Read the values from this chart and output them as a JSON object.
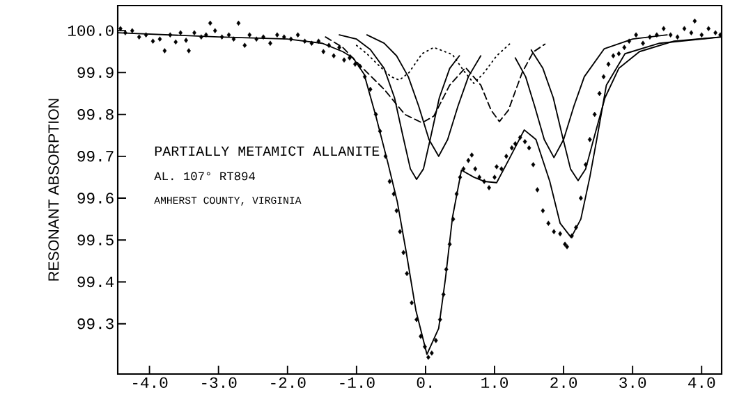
{
  "chart_data": {
    "type": "line",
    "ylabel": "RESONANT ABSORPTION",
    "annotations": [
      "PARTIALLY METAMICT ALLANITE",
      "AL. 107° RT894",
      "AMHERST COUNTY, VIRGINIA"
    ],
    "xlim": [
      -4.46,
      4.29
    ],
    "ylim": [
      99.18,
      100.06
    ],
    "xticks": [
      {
        "value": -4,
        "label": "-4.0"
      },
      {
        "value": -3,
        "label": "-3.0"
      },
      {
        "value": -2,
        "label": "-2.0"
      },
      {
        "value": -1,
        "label": "-1.0"
      },
      {
        "value": 0,
        "label": "0."
      },
      {
        "value": 1,
        "label": "1.0"
      },
      {
        "value": 2,
        "label": "2.0"
      },
      {
        "value": 3,
        "label": "3.0"
      },
      {
        "value": 4,
        "label": "4.0"
      }
    ],
    "yticks": [
      {
        "value": 99.3,
        "label": "99.3"
      },
      {
        "value": 99.4,
        "label": "99.4"
      },
      {
        "value": 99.5,
        "label": "99.5"
      },
      {
        "value": 99.6,
        "label": "99.6"
      },
      {
        "value": 99.7,
        "label": "99.7"
      },
      {
        "value": 99.8,
        "label": "99.8"
      },
      {
        "value": 99.9,
        "label": "99.9"
      },
      {
        "value": 100,
        "label": "100.0"
      }
    ],
    "series": [
      {
        "type": "scatter",
        "marker": "diamond",
        "color": "#000000",
        "x": [
          -4.42,
          -4.35,
          -4.25,
          -4.15,
          -4.05,
          -3.95,
          -3.85,
          -3.78,
          -3.7,
          -3.62,
          -3.55,
          -3.47,
          -3.43,
          -3.35,
          -3.25,
          -3.18,
          -3.12,
          -3.05,
          -2.95,
          -2.85,
          -2.78,
          -2.71,
          -2.62,
          -2.55,
          -2.45,
          -2.35,
          -2.25,
          -2.15,
          -2.05,
          -1.95,
          -1.85,
          -1.75,
          -1.65,
          -1.55,
          -1.48,
          -1.4,
          -1.33,
          -1.25,
          -1.18,
          -1.1,
          -1.02,
          -0.95,
          -0.88,
          -0.8,
          -0.72,
          -0.66,
          -0.58,
          -0.52,
          -0.46,
          -0.42,
          -0.37,
          -0.32,
          -0.27,
          -0.2,
          -0.13,
          -0.07,
          -0.01,
          0.04,
          0.09,
          0.15,
          0.21,
          0.26,
          0.3,
          0.35,
          0.4,
          0.45,
          0.5,
          0.55,
          0.62,
          0.67,
          0.72,
          0.78,
          0.85,
          0.92,
          1.0,
          1.03,
          1.1,
          1.17,
          1.25,
          1.3,
          1.37,
          1.44,
          1.5,
          1.56,
          1.62,
          1.7,
          1.78,
          1.86,
          1.95,
          2.02,
          2.05,
          2.12,
          2.18,
          2.25,
          2.32,
          2.38,
          2.45,
          2.52,
          2.58,
          2.65,
          2.72,
          2.8,
          2.88,
          2.95,
          3.05,
          3.15,
          3.25,
          3.35,
          3.45,
          3.55,
          3.65,
          3.75,
          3.85,
          3.9,
          4.0,
          4.1,
          4.2,
          4.27
        ],
        "values": [
          100.005,
          99.995,
          100.0,
          99.985,
          99.99,
          99.975,
          99.98,
          99.952,
          99.99,
          99.973,
          99.995,
          99.977,
          99.952,
          99.995,
          99.985,
          99.99,
          100.018,
          100.0,
          99.985,
          99.99,
          99.98,
          100.018,
          99.965,
          99.99,
          99.98,
          99.985,
          99.97,
          99.99,
          99.985,
          99.98,
          99.99,
          99.975,
          99.97,
          99.975,
          99.95,
          99.965,
          99.94,
          99.96,
          99.93,
          99.935,
          99.92,
          99.915,
          99.89,
          99.86,
          99.8,
          99.76,
          99.7,
          99.64,
          99.61,
          99.57,
          99.52,
          99.47,
          99.42,
          99.35,
          99.31,
          99.27,
          99.245,
          99.22,
          99.23,
          99.26,
          99.31,
          99.37,
          99.43,
          99.49,
          99.55,
          99.61,
          99.65,
          99.67,
          99.69,
          99.703,
          99.67,
          99.65,
          99.64,
          99.625,
          99.65,
          99.675,
          99.67,
          99.7,
          99.72,
          99.73,
          99.745,
          99.735,
          99.72,
          99.68,
          99.62,
          99.57,
          99.54,
          99.52,
          99.515,
          99.49,
          99.484,
          99.51,
          99.53,
          99.6,
          99.68,
          99.74,
          99.8,
          99.85,
          99.89,
          99.92,
          99.94,
          99.945,
          99.96,
          99.975,
          99.99,
          99.97,
          99.985,
          99.99,
          100.005,
          99.99,
          99.985,
          100.005,
          99.995,
          100.023,
          99.99,
          100.005,
          99.995,
          99.99
        ]
      },
      {
        "line_style": "solid",
        "color": "#000000",
        "x": [
          -4.46,
          -3.0,
          -2.0,
          -1.5,
          -1.2,
          -1.05,
          -0.89,
          -0.72,
          -0.55,
          -0.41,
          -0.28,
          -0.14,
          0.02,
          0.19,
          0.29,
          0.39,
          0.52,
          0.7,
          0.85,
          1.03,
          1.2,
          1.43,
          1.6,
          1.8,
          1.95,
          2.11,
          2.25,
          2.38,
          2.48,
          2.62,
          2.89,
          3.39,
          4.29
        ],
        "values": [
          99.995,
          99.985,
          99.98,
          99.97,
          99.95,
          99.935,
          99.896,
          99.796,
          99.687,
          99.592,
          99.471,
          99.332,
          99.227,
          99.289,
          99.41,
          99.554,
          99.667,
          99.65,
          99.64,
          99.637,
          99.69,
          99.763,
          99.74,
          99.64,
          99.54,
          99.506,
          99.55,
          99.65,
          99.74,
          99.87,
          99.945,
          99.97,
          99.985
        ]
      },
      {
        "line_style": "solid",
        "color": "#000000",
        "x": [
          -1.25,
          -1.0,
          -0.8,
          -0.6,
          -0.45,
          -0.33,
          -0.22,
          -0.13,
          -0.03,
          0.08,
          0.2,
          0.35,
          0.49
        ],
        "values": [
          99.99,
          99.98,
          99.955,
          99.91,
          99.84,
          99.75,
          99.67,
          99.645,
          99.67,
          99.75,
          99.84,
          99.91,
          99.94
        ]
      },
      {
        "line_style": "solid",
        "color": "#000000",
        "x": [
          -0.85,
          -0.6,
          -0.42,
          -0.25,
          -0.1,
          0.05,
          0.19,
          0.32,
          0.47,
          0.62,
          0.8
        ],
        "values": [
          99.99,
          99.97,
          99.94,
          99.89,
          99.82,
          99.74,
          99.7,
          99.74,
          99.82,
          99.89,
          99.94
        ]
      },
      {
        "line_style": "solid",
        "color": "#000000",
        "x": [
          1.3,
          1.45,
          1.58,
          1.72,
          1.86,
          2.0,
          2.15,
          2.3,
          2.59,
          3.0,
          3.5
        ],
        "values": [
          99.935,
          99.89,
          99.82,
          99.74,
          99.697,
          99.74,
          99.82,
          99.89,
          99.957,
          99.98,
          99.99
        ]
      },
      {
        "line_style": "solid",
        "color": "#000000",
        "x": [
          1.53,
          1.7,
          1.85,
          1.98,
          2.1,
          2.21,
          2.32,
          2.45,
          2.6,
          2.8,
          3.1,
          3.6,
          4.29
        ],
        "values": [
          99.954,
          99.91,
          99.84,
          99.75,
          99.67,
          99.642,
          99.67,
          99.75,
          99.84,
          99.91,
          99.95,
          99.975,
          99.985
        ]
      },
      {
        "line_style": "dashed",
        "color": "#000000",
        "x": [
          -1.45,
          -1.2,
          -0.92,
          -0.6,
          -0.3,
          -0.05,
          0.12,
          0.35,
          0.58,
          0.8,
          0.95,
          1.07,
          1.2,
          1.4,
          1.56,
          1.73
        ],
        "values": [
          99.985,
          99.96,
          99.912,
          99.86,
          99.8,
          99.78,
          99.796,
          99.87,
          99.912,
          99.87,
          99.81,
          99.783,
          99.81,
          99.9,
          99.949,
          99.968
        ]
      },
      {
        "line_style": "dotted",
        "color": "#000000",
        "x": [
          -1.0,
          -0.85,
          -0.69,
          -0.5,
          -0.38,
          -0.24,
          -0.05,
          0.12,
          0.39,
          0.55,
          0.7,
          0.85,
          1.03,
          1.23
        ],
        "values": [
          99.965,
          99.945,
          99.919,
          99.89,
          99.882,
          99.9,
          99.945,
          99.96,
          99.943,
          99.905,
          99.874,
          99.9,
          99.94,
          99.97
        ]
      }
    ]
  }
}
